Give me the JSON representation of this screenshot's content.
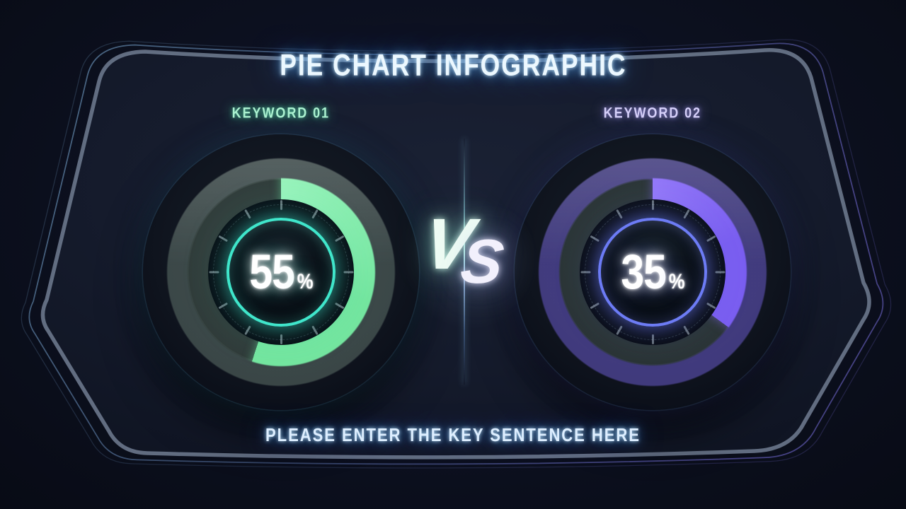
{
  "title": "PIE CHART INFOGRAPHIC",
  "footer_placeholder": "PLEASE ENTER THE KEY SENTENCE HERE",
  "vs": {
    "v": "V",
    "s": "S"
  },
  "colors": {
    "background": "#0c101f",
    "panel_fill": "#141a2b",
    "frame_inner_stroke": "#6d7a8e",
    "frame_outer_stroke_blue": "#5d82a2",
    "frame_outer_stroke_purple": "#544f9e",
    "title_glow": "#3c8cff",
    "divider_glow": "#9be0ff"
  },
  "gauges": [
    {
      "label": "KEYWORD 01",
      "value": "55",
      "unit": "%",
      "percent": 55,
      "arc_color": "#74e59f",
      "arc_color_bright": "#99f3bc",
      "arc_glow": "rgba(110,235,165,0.5)",
      "dim_ring_color": "rgba(150,178,158,0.32)",
      "track_color": "rgba(100,120,100,0.38)",
      "inner_border_color": "#40e6cb",
      "inner_glow_color": "rgba(64,230,203,0.55)",
      "inner_glow_soft": "rgba(64,230,203,0.26)",
      "label_color": "#aaf0cf",
      "rim_glow": "rgba(45,110,150,0.30)"
    },
    {
      "label": "KEYWORD 02",
      "value": "35",
      "unit": "%",
      "percent": 35,
      "arc_color": "#7a5ef0",
      "arc_color_bright": "#9479f8",
      "arc_glow": "rgba(135,105,245,0.5)",
      "dim_ring_color": "rgba(118,100,228,0.48)",
      "track_color": "rgba(88,106,92,0.36)",
      "inner_border_color": "#6d7cf5",
      "inner_glow_color": "rgba(108,124,245,0.6)",
      "inner_glow_soft": "rgba(108,124,245,0.28)",
      "label_color": "#d4cef8",
      "rim_glow": "rgba(70,80,170,0.30)"
    }
  ],
  "chart_data": {
    "type": "pie",
    "title": "PIE CHART INFOGRAPHIC",
    "categories": [
      "KEYWORD 01",
      "KEYWORD 02"
    ],
    "values": [
      55,
      35
    ],
    "unit": "%",
    "legend_position": "above-each-gauge",
    "style": "dual donut gauges compared with VS, arcs start at 12 o'clock clockwise"
  }
}
